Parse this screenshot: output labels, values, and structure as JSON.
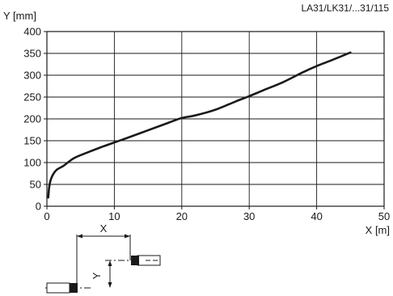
{
  "reference": "LA31/LK31/...31/115",
  "chart_data": {
    "type": "line",
    "title": "",
    "xlabel": "X [m]",
    "ylabel": "Y [mm]",
    "xlim": [
      0,
      50
    ],
    "ylim": [
      0,
      400
    ],
    "xticks": [
      0,
      10,
      20,
      30,
      40,
      50
    ],
    "yticks": [
      0,
      50,
      100,
      150,
      200,
      250,
      300,
      350,
      400
    ],
    "grid": true,
    "series": [
      {
        "x": [
          0.2,
          0.35,
          0.6,
          1.0,
          1.5,
          2.5,
          4,
          6,
          8,
          10,
          12,
          15,
          18,
          20,
          22,
          25,
          28,
          30,
          32,
          35,
          38,
          40,
          42,
          45
        ],
        "y": [
          20,
          45,
          62,
          75,
          84,
          93,
          110,
          123,
          135,
          146,
          157,
          174,
          191,
          202,
          208,
          221,
          240,
          252,
          265,
          284,
          307,
          321,
          333,
          352
        ]
      }
    ]
  },
  "diagram": {
    "x_label": "X",
    "y_label": "Y"
  }
}
